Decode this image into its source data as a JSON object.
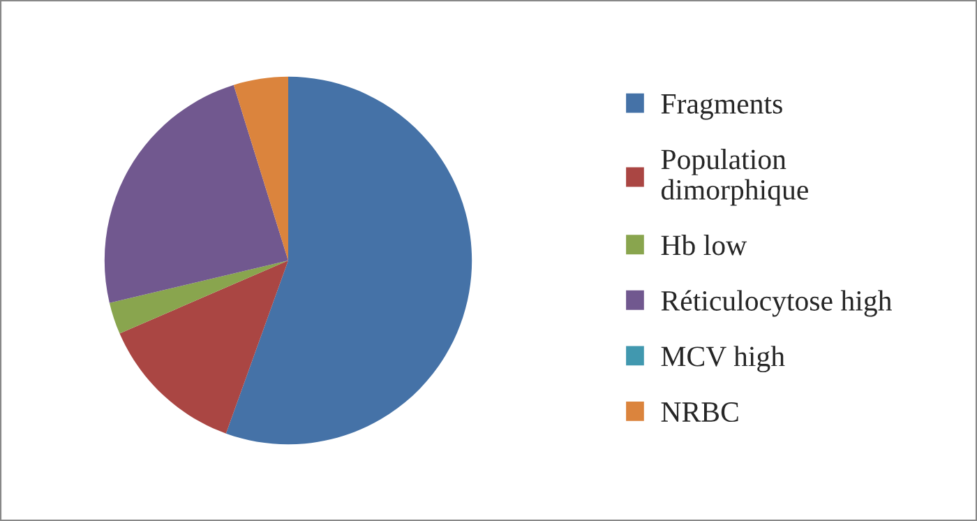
{
  "chart_data": {
    "type": "pie",
    "categories": [
      "Fragments",
      "Population\ndimorphique",
      "Hb low",
      "Réticulocytose high",
      "MCV high",
      "NRBC"
    ],
    "values": [
      55.5,
      13,
      2.8,
      23.9,
      0,
      4.8
    ],
    "colors": [
      "#4572a7",
      "#aa4643",
      "#89a54e",
      "#71588f",
      "#4198af",
      "#db843d"
    ],
    "legend": "right"
  }
}
